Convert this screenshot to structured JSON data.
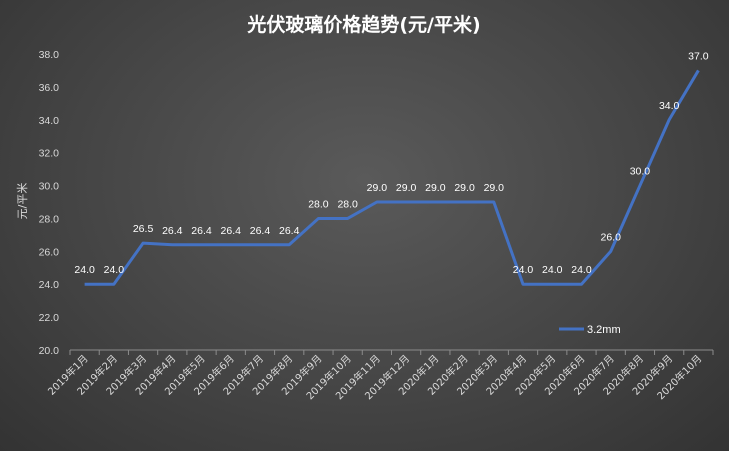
{
  "chart_data": {
    "type": "line",
    "title": "光伏玻璃价格趋势(元/平米)",
    "ylabel": "元/平米",
    "xlabel": "",
    "ylim": [
      20.0,
      38.0
    ],
    "yticks": [
      "20.0",
      "22.0",
      "24.0",
      "26.0",
      "28.0",
      "30.0",
      "32.0",
      "34.0",
      "36.0",
      "38.0"
    ],
    "categories": [
      "2019年1月",
      "2019年2月",
      "2019年3月",
      "2019年4月",
      "2019年5月",
      "2019年6月",
      "2019年7月",
      "2019年8月",
      "2019年9月",
      "2019年10月",
      "2019年11月",
      "2019年12月",
      "2020年1月",
      "2020年2月",
      "2020年3月",
      "2020年4月",
      "2020年5月",
      "2020年6月",
      "2020年7月",
      "2020年8月",
      "2020年9月",
      "2020年10月"
    ],
    "series": [
      {
        "name": "3.2mm",
        "values": [
          24.0,
          24.0,
          26.5,
          26.4,
          26.4,
          26.4,
          26.4,
          26.4,
          28.0,
          28.0,
          29.0,
          29.0,
          29.0,
          29.0,
          29.0,
          24.0,
          24.0,
          24.0,
          26.0,
          30.0,
          34.0,
          37.0
        ],
        "labels": [
          "24.0",
          "24.0",
          "26.5",
          "26.4",
          "26.4",
          "26.4",
          "26.4",
          "26.4",
          "28.0",
          "28.0",
          "29.0",
          "29.0",
          "29.0",
          "29.0",
          "29.0",
          "24.0",
          "24.0",
          "24.0",
          "26.0",
          "30.0",
          "34.0",
          "37.0"
        ],
        "color": "#4472c4"
      }
    ],
    "grid": false,
    "legend_position": "bottom-right"
  }
}
